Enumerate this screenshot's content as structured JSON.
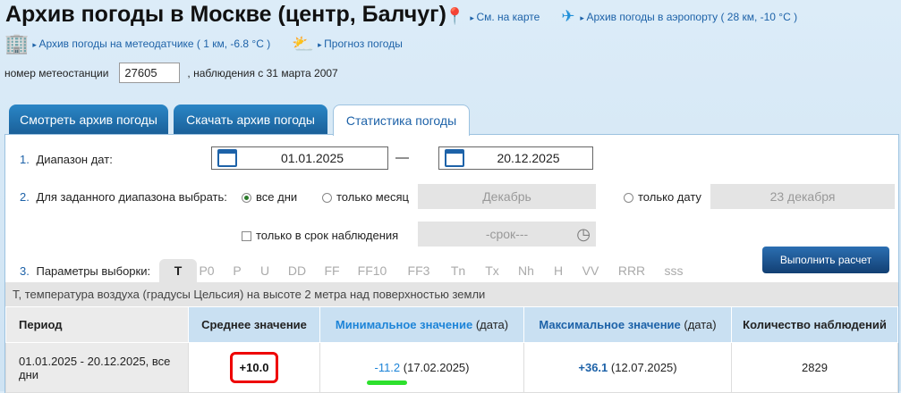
{
  "header": {
    "title": "Архив погоды в Москве (центр, Балчуг)",
    "map_link": "См. на карте",
    "airport_link": "Архив погоды в аэропорту ( 28 км, -10 °C )",
    "sensor_link": "Архив погоды на метеодатчике ( 1 км, -6.8 °C )",
    "forecast_link": "Прогноз погоды",
    "station_label": "номер метеостанции",
    "station_value": "27605",
    "observations_since": ", наблюдения с 31 марта 2007"
  },
  "tabs": [
    "Смотреть архив погоды",
    "Скачать архив погоды",
    "Статистика погоды"
  ],
  "form": {
    "step1_num": "1.",
    "step1_label": "Диапазон дат:",
    "date_from": "01.01.2025",
    "dash": "—",
    "date_to": "20.12.2025",
    "step2_num": "2.",
    "step2_label": "Для заданного диапазона выбрать:",
    "opt_all": "все дни",
    "opt_month": "только месяц",
    "month_value": "Декабрь",
    "opt_date": "только дату",
    "date_value": "23 декабря",
    "opt_term": "только в срок наблюдения",
    "term_value": "-срок---",
    "step3_num": "3.",
    "step3_label": "Параметры выборки:",
    "params": [
      "T",
      "P0",
      "P",
      "U",
      "DD",
      "FF",
      "FF10",
      "FF3",
      "Tn",
      "Tx",
      "Nh",
      "H",
      "VV",
      "RRR",
      "sss"
    ],
    "submit": "Выполнить расчет"
  },
  "description": "T, температура воздуха (градусы Цельсия) на высоте 2 метра над поверхностью земли",
  "table": {
    "headers": {
      "period": "Период",
      "avg": "Среднее значение",
      "min": "Минимальное значение",
      "min_suffix": " (дата)",
      "max": "Максимальное значение",
      "max_suffix": " (дата)",
      "count": "Количество наблюдений"
    },
    "row": {
      "period": "01.01.2025 - 20.12.2025, все дни",
      "avg": "+10.0",
      "min": "-11.2",
      "min_date": " (17.02.2025)",
      "max": "+36.1",
      "max_date": " (12.07.2025)",
      "count": "2829"
    }
  }
}
